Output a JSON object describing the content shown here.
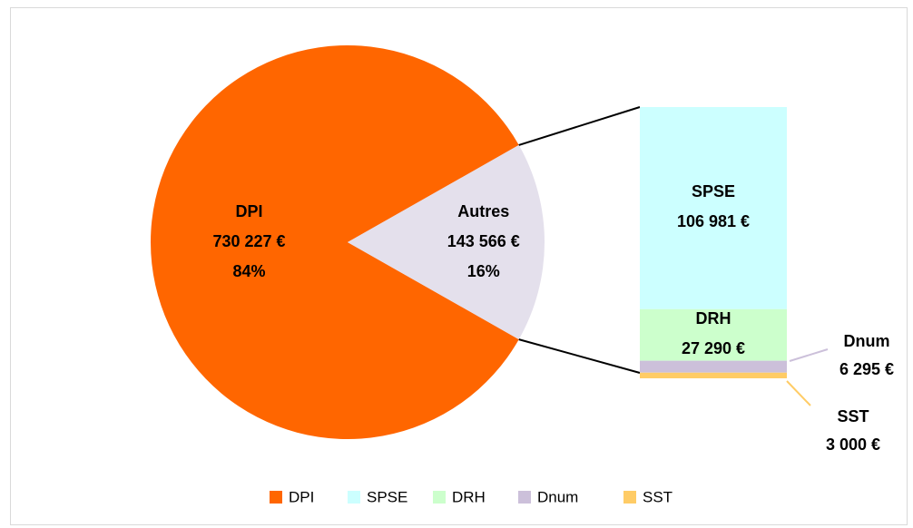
{
  "chart_data": {
    "type": "pie",
    "categories": [
      "DPI",
      "Autres"
    ],
    "values": [
      730227,
      143566
    ],
    "value_labels": [
      "730 227 €",
      "143 566 €"
    ],
    "shares": [
      84,
      16
    ],
    "share_labels": [
      "84%",
      "16%"
    ],
    "colors": [
      "#ff6600",
      "#e4e0ec"
    ],
    "breakdown": {
      "categories": [
        "SPSE",
        "DRH",
        "Dnum",
        "SST"
      ],
      "values": [
        106981,
        27290,
        6295,
        3000
      ],
      "value_labels": [
        "106 981 €",
        "27 290 €",
        "6 295 €",
        "3 000 €"
      ],
      "colors": [
        "#ccffff",
        "#ccffcc",
        "#ccc0da",
        "#ffcc66"
      ]
    },
    "legend": "bottom"
  }
}
